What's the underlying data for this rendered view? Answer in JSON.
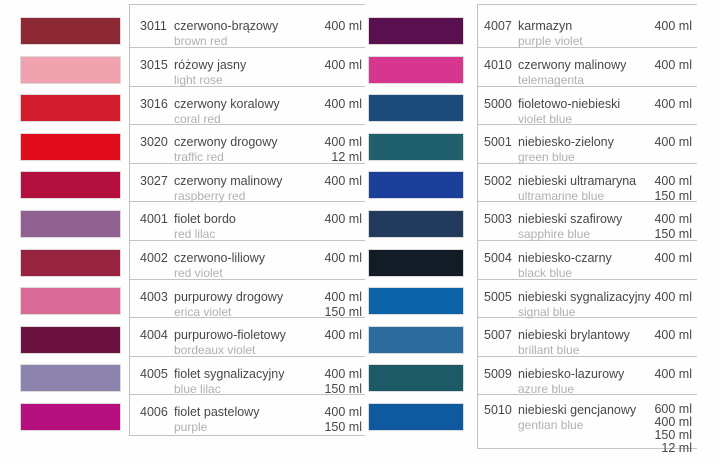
{
  "style": {
    "background": "#fefefe",
    "divider_color": "#c6c2c2",
    "code_text_color": "#4b4646",
    "subtitle_text_color": "#b4afaf"
  },
  "columns": [
    {
      "id": "left",
      "rows": [
        {
          "code": "3011",
          "name_pl": "czerwono-brązowy",
          "name_en": "brown red",
          "volumes": [
            "400 ml"
          ],
          "swatch_color": "#8c2935"
        },
        {
          "code": "3015",
          "name_pl": "różowy jasny",
          "name_en": "light rose",
          "volumes": [
            "400 ml"
          ],
          "swatch_color": "#f0a2ae"
        },
        {
          "code": "3016",
          "name_pl": "czerwony koralowy",
          "name_en": "coral red",
          "volumes": [
            "400 ml"
          ],
          "swatch_color": "#d21d2e"
        },
        {
          "code": "3020",
          "name_pl": "czerwony drogowy",
          "name_en": "traffic red",
          "volumes": [
            "400 ml",
            "12 ml"
          ],
          "swatch_color": "#e10d1c"
        },
        {
          "code": "3027",
          "name_pl": "czerwony malinowy",
          "name_en": "raspberry red",
          "volumes": [
            "400 ml"
          ],
          "swatch_color": "#b30f3f"
        },
        {
          "code": "4001",
          "name_pl": "fiolet bordo",
          "name_en": "red lilac",
          "volumes": [
            "400 ml"
          ],
          "swatch_color": "#8e6190"
        },
        {
          "code": "4002",
          "name_pl": "czerwono-liliowy",
          "name_en": "red violet",
          "volumes": [
            "400 ml"
          ],
          "swatch_color": "#962340"
        },
        {
          "code": "4003",
          "name_pl": "purpurowy drogowy",
          "name_en": "erica violet",
          "volumes": [
            "400 ml",
            "150 ml"
          ],
          "swatch_color": "#d86a96"
        },
        {
          "code": "4004",
          "name_pl": "purpurowo-fioletowy",
          "name_en": "bordeaux violet",
          "volumes": [
            "400 ml"
          ],
          "swatch_color": "#6c1240"
        },
        {
          "code": "4005",
          "name_pl": "fiolet sygnalizacyjny",
          "name_en": "blue lilac",
          "volumes": [
            "400 ml",
            "150 ml"
          ],
          "swatch_color": "#8c84ac"
        },
        {
          "code": "4006",
          "name_pl": "fiolet pastelowy",
          "name_en": "purple",
          "volumes": [
            "400 ml",
            "150 ml"
          ],
          "swatch_color": "#b5107e"
        }
      ]
    },
    {
      "id": "right",
      "rows": [
        {
          "code": "4007",
          "name_pl": "karmazyn",
          "name_en": "purple violet",
          "volumes": [
            "400 ml"
          ],
          "swatch_color": "#5a104e"
        },
        {
          "code": "4010",
          "name_pl": "czerwony malinowy",
          "name_en": "telemagenta",
          "volumes": [
            "400 ml"
          ],
          "swatch_color": "#d63590"
        },
        {
          "code": "5000",
          "name_pl": "fioletowo-niebieski",
          "name_en": "violet blue",
          "volumes": [
            "400 ml"
          ],
          "swatch_color": "#1b4b7a"
        },
        {
          "code": "5001",
          "name_pl": "niebiesko-zielony",
          "name_en": "green blue",
          "volumes": [
            "400 ml"
          ],
          "swatch_color": "#20606d"
        },
        {
          "code": "5002",
          "name_pl": "niebieski ultramaryna",
          "name_en": "ultramarine blue",
          "volumes": [
            "400 ml",
            "150 ml"
          ],
          "swatch_color": "#1d3f9c"
        },
        {
          "code": "5003",
          "name_pl": "niebieski szafirowy",
          "name_en": "sapphire blue",
          "volumes": [
            "400 ml",
            "150 ml"
          ],
          "swatch_color": "#213a5e"
        },
        {
          "code": "5004",
          "name_pl": "niebiesko-czarny",
          "name_en": "black blue",
          "volumes": [
            "400 ml"
          ],
          "swatch_color": "#121c26"
        },
        {
          "code": "5005",
          "name_pl": "niebieski sygnalizacyjny",
          "name_en": "signal blue",
          "volumes": [
            "400 ml"
          ],
          "swatch_color": "#0c63a8"
        },
        {
          "code": "5007",
          "name_pl": "niebieski brylantowy",
          "name_en": "brillant blue",
          "volumes": [
            "400 ml"
          ],
          "swatch_color": "#2b6b9d"
        },
        {
          "code": "5009",
          "name_pl": "niebiesko-lazurowy",
          "name_en": "azure blue",
          "volumes": [
            "400 ml"
          ],
          "swatch_color": "#1d5a66"
        },
        {
          "code": "5010",
          "name_pl": "niebieski gencjanowy",
          "name_en": "gentian blue",
          "volumes": [
            "600 ml",
            "400 ml",
            "150 ml",
            "12 ml"
          ],
          "swatch_color": "#0f5a9e"
        }
      ]
    }
  ]
}
